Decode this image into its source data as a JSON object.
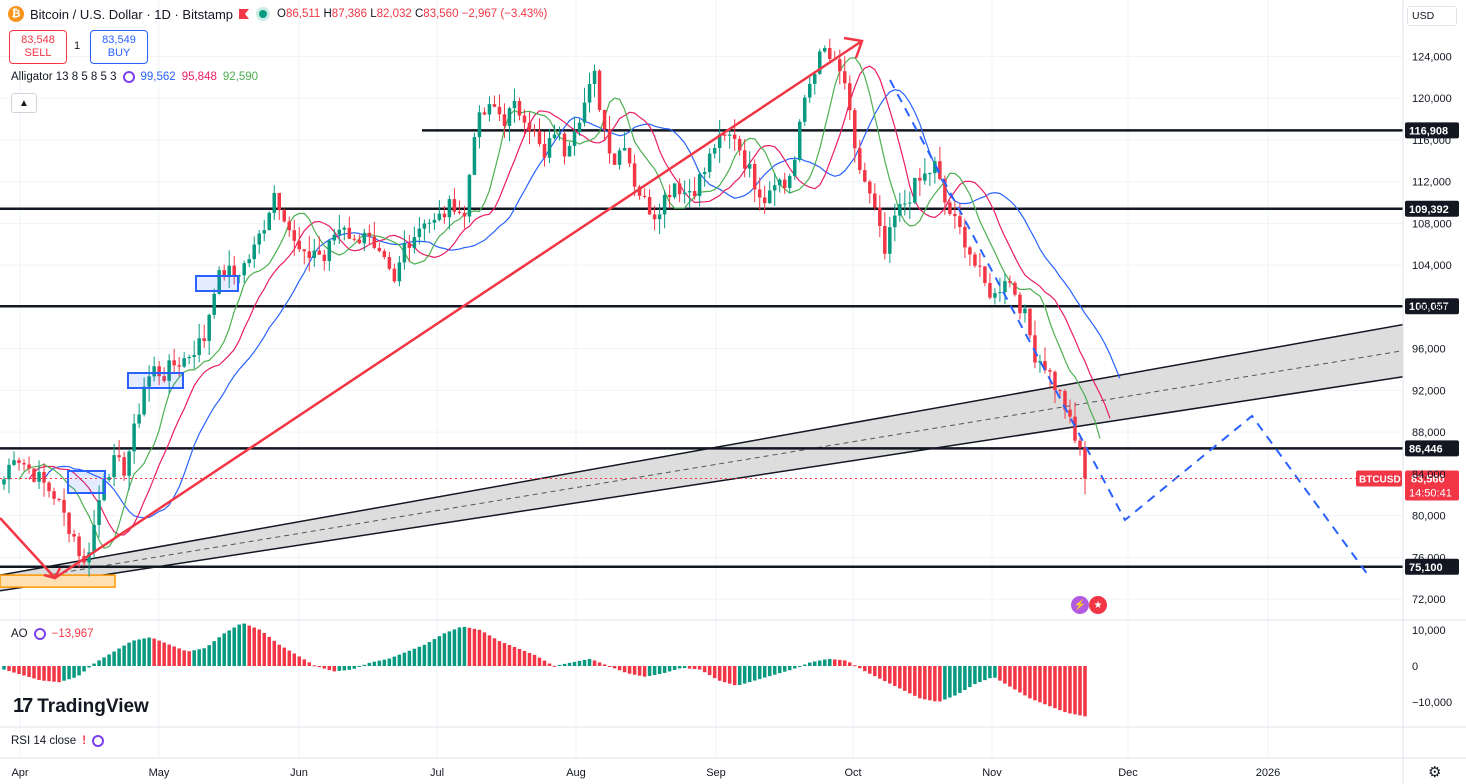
{
  "header": {
    "symbol_title": "Bitcoin / U.S. Dollar · 1D · Bitstamp",
    "open_label": "O",
    "open": "86,511",
    "high_label": "H",
    "high": "87,386",
    "low_label": "L",
    "low": "82,032",
    "close_label": "C",
    "close": "83,560",
    "change": "−2,967 (−3.43%)"
  },
  "trade": {
    "sell_price": "83,548",
    "sell_label": "SELL",
    "quantity": "1",
    "buy_price": "83,549",
    "buy_label": "BUY"
  },
  "currency": "USD",
  "indicators": {
    "alligator": {
      "name": "Alligator 13 8 5 8 5 3",
      "jaw": "99,562",
      "teeth": "95,848",
      "lips": "92,590"
    },
    "ao": {
      "name": "AO",
      "value": "−13,967"
    },
    "rsi": {
      "name": "RSI 14 close"
    }
  },
  "branding": "TradingView",
  "colors": {
    "up": "#089981",
    "down": "#f23645",
    "jaw": "#2962ff",
    "teeth": "#e91e63",
    "lips": "#4caf50",
    "accent": "#2962ff"
  },
  "chart_data": {
    "type": "candlestick",
    "title": "Bitcoin / U.S. Dollar · 1D · Bitstamp",
    "price_axis": {
      "ticks": [
        "124,000",
        "120,000",
        "116,000",
        "112,000",
        "108,000",
        "104,000",
        "100,000",
        "96,000",
        "92,000",
        "88,000",
        "84,000",
        "80,000",
        "76,000",
        "72,000"
      ],
      "ylim": [
        70000,
        130000
      ]
    },
    "time_axis": {
      "labels": [
        "Apr",
        "May",
        "Jun",
        "Jul",
        "Aug",
        "Sep",
        "Oct",
        "Nov",
        "Dec",
        "2026"
      ]
    },
    "horizontal_levels": [
      {
        "value": 116908,
        "label": "116,908"
      },
      {
        "value": 109392,
        "label": "109,392"
      },
      {
        "value": 100057,
        "label": "100,057"
      },
      {
        "value": 86446,
        "label": "86,446"
      },
      {
        "value": 75100,
        "label": "75,100"
      }
    ],
    "last_price": {
      "symbol": "BTCUSD",
      "value": "83,560",
      "countdown": "14:50:41"
    },
    "price_path": [
      [
        0,
        83500
      ],
      [
        2,
        86000
      ],
      [
        4,
        85000
      ],
      [
        6,
        84000
      ],
      [
        8,
        83000
      ],
      [
        10,
        82000
      ],
      [
        12,
        80000
      ],
      [
        14,
        78000
      ],
      [
        16,
        75200
      ],
      [
        18,
        79000
      ],
      [
        20,
        84000
      ],
      [
        22,
        85000
      ],
      [
        24,
        84500
      ],
      [
        26,
        88000
      ],
      [
        28,
        92500
      ],
      [
        30,
        94000
      ],
      [
        32,
        93500
      ],
      [
        34,
        94500
      ],
      [
        36,
        95000
      ],
      [
        38,
        96000
      ],
      [
        40,
        97000
      ],
      [
        42,
        102000
      ],
      [
        44,
        103500
      ],
      [
        46,
        103000
      ],
      [
        48,
        104000
      ],
      [
        50,
        105500
      ],
      [
        52,
        108000
      ],
      [
        54,
        111000
      ],
      [
        56,
        109000
      ],
      [
        58,
        106000
      ],
      [
        60,
        104500
      ],
      [
        62,
        105500
      ],
      [
        64,
        104500
      ],
      [
        66,
        107000
      ],
      [
        68,
        108000
      ],
      [
        70,
        106000
      ],
      [
        72,
        107500
      ],
      [
        74,
        105000
      ],
      [
        76,
        104000
      ],
      [
        78,
        102000
      ],
      [
        80,
        106000
      ],
      [
        82,
        107000
      ],
      [
        84,
        108500
      ],
      [
        86,
        108000
      ],
      [
        88,
        109000
      ],
      [
        90,
        110000
      ],
      [
        92,
        108500
      ],
      [
        94,
        117000
      ],
      [
        96,
        118500
      ],
      [
        98,
        119000
      ],
      [
        100,
        118000
      ],
      [
        102,
        119000
      ],
      [
        104,
        118500
      ],
      [
        106,
        116500
      ],
      [
        108,
        114000
      ],
      [
        110,
        117000
      ],
      [
        112,
        115000
      ],
      [
        114,
        117500
      ],
      [
        116,
        119500
      ],
      [
        118,
        122000
      ],
      [
        120,
        117000
      ],
      [
        122,
        114000
      ],
      [
        124,
        116000
      ],
      [
        126,
        112000
      ],
      [
        128,
        110000
      ],
      [
        130,
        109000
      ],
      [
        132,
        110500
      ],
      [
        134,
        112000
      ],
      [
        136,
        111000
      ],
      [
        138,
        111500
      ],
      [
        140,
        113000
      ],
      [
        142,
        115500
      ],
      [
        144,
        116000
      ],
      [
        146,
        116500
      ],
      [
        148,
        114000
      ],
      [
        150,
        112000
      ],
      [
        152,
        110500
      ],
      [
        154,
        112500
      ],
      [
        156,
        111500
      ],
      [
        158,
        114000
      ],
      [
        160,
        120000
      ],
      [
        162,
        123000
      ],
      [
        164,
        124500
      ],
      [
        166,
        123000
      ],
      [
        168,
        121500
      ],
      [
        170,
        114500
      ],
      [
        172,
        112000
      ],
      [
        174,
        109000
      ],
      [
        176,
        105000
      ],
      [
        178,
        108500
      ],
      [
        180,
        110000
      ],
      [
        182,
        111500
      ],
      [
        184,
        112500
      ],
      [
        186,
        113500
      ],
      [
        188,
        110000
      ],
      [
        190,
        108000
      ],
      [
        192,
        106500
      ],
      [
        194,
        104000
      ],
      [
        196,
        102000
      ],
      [
        198,
        101000
      ],
      [
        200,
        103000
      ],
      [
        202,
        101500
      ],
      [
        204,
        99000
      ],
      [
        206,
        95500
      ],
      [
        208,
        94500
      ],
      [
        210,
        92500
      ],
      [
        212,
        90500
      ],
      [
        214,
        87000
      ],
      [
        215,
        86511
      ],
      [
        216,
        83560
      ]
    ],
    "ao_values": [
      -1000,
      -2500,
      -4000,
      -4500,
      -3000,
      1000,
      4000,
      7000,
      8000,
      6000,
      4000,
      5000,
      9000,
      12000,
      10000,
      6000,
      3000,
      0,
      -1500,
      -1000,
      1000,
      2000,
      4000,
      6000,
      9000,
      11000,
      10000,
      7000,
      5000,
      3000,
      0,
      1000,
      2000,
      0,
      -2000,
      -3000,
      -2000,
      -500,
      -1000,
      -4000,
      -5500,
      -4000,
      -2500,
      -1000,
      1000,
      2000,
      1500,
      -1500,
      -4000,
      -6500,
      -9000,
      -10000,
      -8000,
      -5000,
      -3000,
      -6000,
      -9000,
      -11000,
      -13000,
      -13967
    ],
    "ao_axis": {
      "ticks": [
        "10,000",
        "0",
        "−10,000"
      ]
    },
    "drawings": [
      {
        "type": "arrow",
        "label": "bull trend arrow"
      },
      {
        "type": "parallel-channel",
        "label": "rising channel"
      },
      {
        "type": "dashed-projection",
        "label": "projection path"
      }
    ]
  }
}
